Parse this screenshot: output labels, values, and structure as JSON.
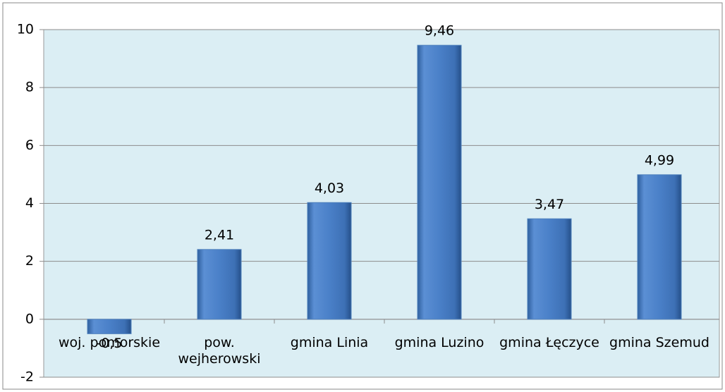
{
  "chart_data": {
    "type": "bar",
    "categories": [
      "woj. pomorskie",
      "pow. wejherowski",
      "gmina Linia",
      "gmina Luzino",
      "gmina Łęczyce",
      "gmina Szemud"
    ],
    "values": [
      -0.5,
      2.41,
      4.03,
      9.46,
      3.47,
      4.99
    ],
    "value_labels": [
      "-0,5",
      "2,41",
      "4,03",
      "9,46",
      "3,47",
      "4,99"
    ],
    "color": "#4f81bd",
    "ylim": [
      -2,
      10
    ],
    "yticks": [
      -2,
      0,
      2,
      4,
      6,
      8,
      10
    ],
    "grid": true
  }
}
